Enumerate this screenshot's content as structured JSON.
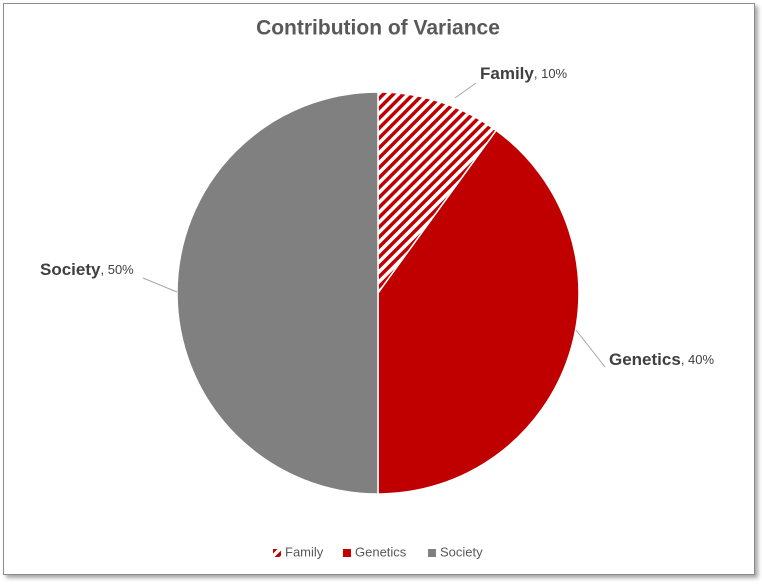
{
  "chart_data": {
    "type": "pie",
    "title": "Contribution of Variance",
    "categories": [
      "Family",
      "Genetics",
      "Society"
    ],
    "values": [
      10,
      40,
      50
    ],
    "value_labels": [
      "10%",
      "40%",
      "50%"
    ],
    "data_label_separator": ", ",
    "colors": [
      "#c00000",
      "#c00000",
      "#808080"
    ],
    "fills": [
      "hatch",
      "solid",
      "solid"
    ],
    "legend": "bottom"
  }
}
